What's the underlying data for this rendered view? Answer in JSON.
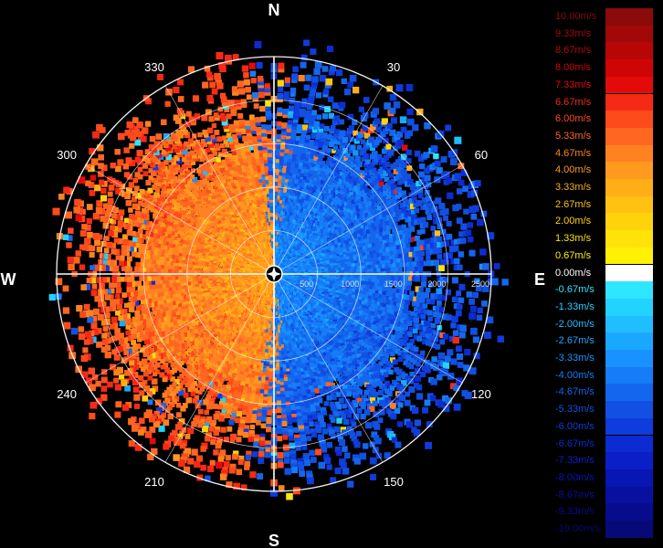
{
  "compass": {
    "north": "N",
    "south": "S",
    "east": "E",
    "west": "W",
    "degree_labels": [
      "30",
      "60",
      "120",
      "150",
      "210",
      "240",
      "300",
      "330"
    ],
    "range_labels": [
      "500",
      "1000",
      "1500",
      "2000",
      "2500"
    ]
  },
  "legend": {
    "items": [
      {
        "label": "10.00m/s",
        "color": "#8b0a0a"
      },
      {
        "label": "9.33m/s",
        "color": "#a10808"
      },
      {
        "label": "8.67m/s",
        "color": "#b80606"
      },
      {
        "label": "8.00m/s",
        "color": "#cf0505"
      },
      {
        "label": "7.33m/s",
        "color": "#e40a0a"
      },
      {
        "label": "6.67m/s",
        "color": "#f52a14"
      },
      {
        "label": "6.00m/s",
        "color": "#ff4a1c"
      },
      {
        "label": "5.33m/s",
        "color": "#ff6622"
      },
      {
        "label": "4.67m/s",
        "color": "#ff8222"
      },
      {
        "label": "4.00m/s",
        "color": "#ff9a1e"
      },
      {
        "label": "3.33m/s",
        "color": "#ffae18"
      },
      {
        "label": "2.67m/s",
        "color": "#ffc212"
      },
      {
        "label": "2.00m/s",
        "color": "#ffd30c"
      },
      {
        "label": "1.33m/s",
        "color": "#ffe308"
      },
      {
        "label": "0.67m/s",
        "color": "#fff004"
      },
      {
        "label": "0.00m/s",
        "color": "#ffffff"
      },
      {
        "label": "-0.67m/s",
        "color": "#2ee6ff"
      },
      {
        "label": "-1.33m/s",
        "color": "#22d2ff"
      },
      {
        "label": "-2.00m/s",
        "color": "#1ebeff"
      },
      {
        "label": "-2.67m/s",
        "color": "#1aa8ff"
      },
      {
        "label": "-3.33m/s",
        "color": "#1892ff"
      },
      {
        "label": "-4.00m/s",
        "color": "#167cf8"
      },
      {
        "label": "-4.67m/s",
        "color": "#1466ee"
      },
      {
        "label": "-5.33m/s",
        "color": "#1250e4"
      },
      {
        "label": "-6.00m/s",
        "color": "#0f3cdc"
      },
      {
        "label": "-6.67m/s",
        "color": "#0c2cd2"
      },
      {
        "label": "-7.33m/s",
        "color": "#0a20c6"
      },
      {
        "label": "-8.00m/s",
        "color": "#0816b4"
      },
      {
        "label": "-8.67m/s",
        "color": "#0810a0"
      },
      {
        "label": "-9.33m/s",
        "color": "#070c8c"
      },
      {
        "label": "-10.00m/s",
        "color": "#060a78"
      }
    ]
  },
  "colors": {
    "background": "#000000",
    "grid": "#ffffff",
    "approaching_palette": [
      "#ffe308",
      "#ffd30c",
      "#ffc212",
      "#ffae18",
      "#ff9a1e",
      "#ff8222",
      "#ff6622",
      "#ff4a1c",
      "#f52a14",
      "#e40a0a"
    ],
    "receding_palette": [
      "#2ee6ff",
      "#22d2ff",
      "#1ebeff",
      "#1aa8ff",
      "#1892ff",
      "#167cf8",
      "#1466ee",
      "#1250e4",
      "#0f3cdc",
      "#0c2cd2"
    ]
  }
}
